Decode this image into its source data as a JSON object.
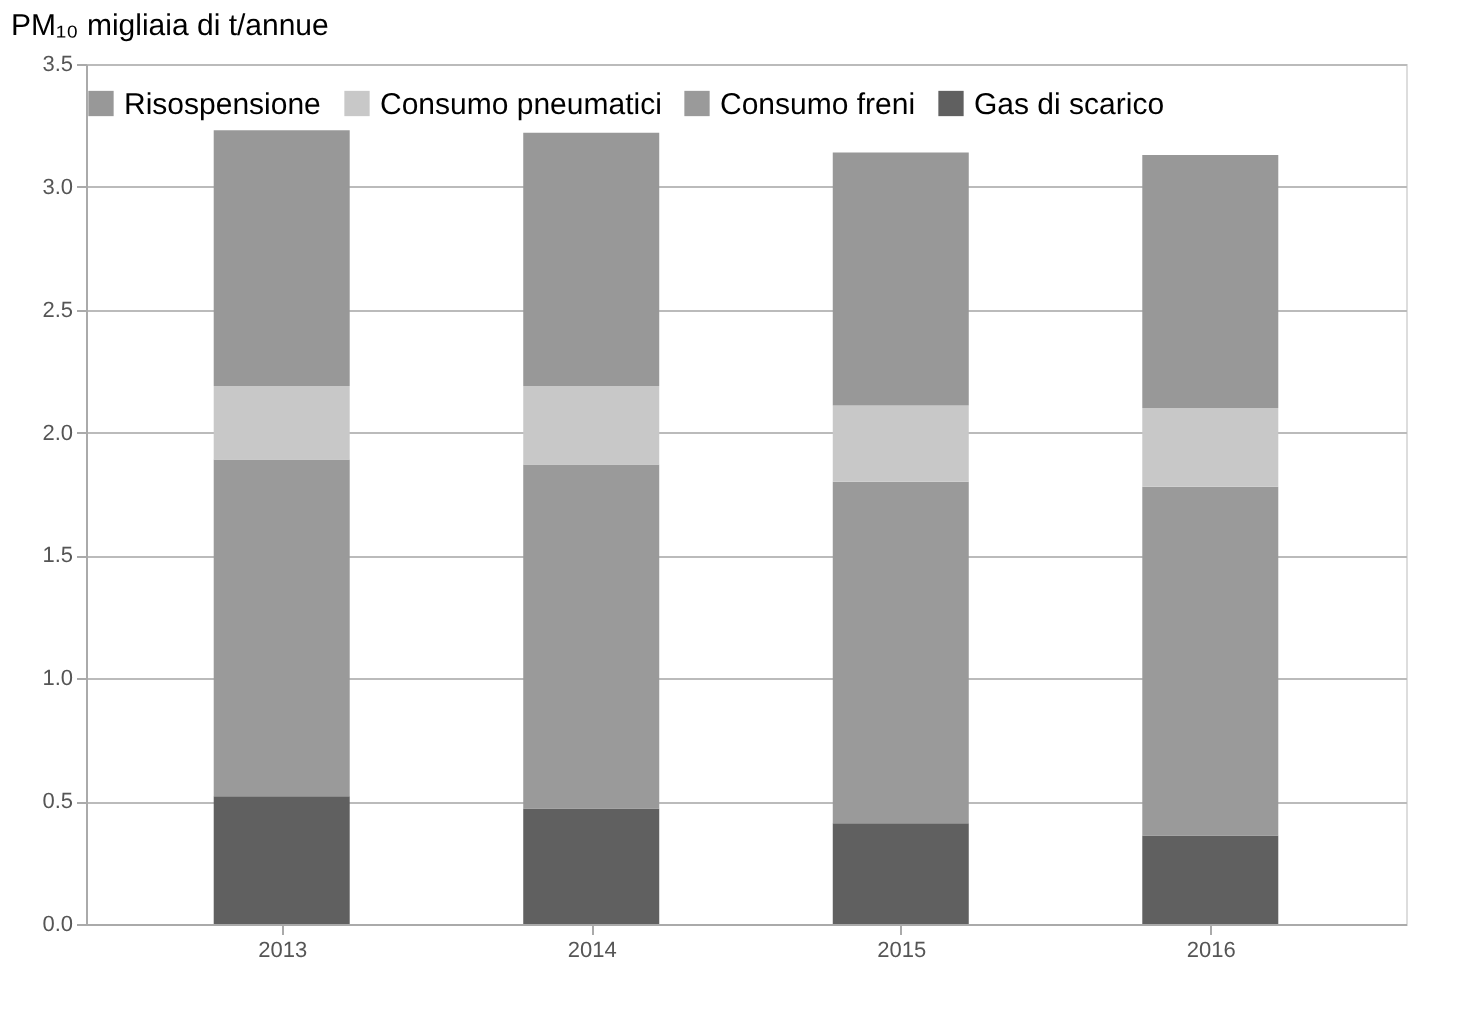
{
  "chart_data": {
    "type": "bar",
    "stacked": true,
    "ylabel": "PM₁₀ migliaia di t/annue",
    "categories": [
      "2013",
      "2014",
      "2015",
      "2016"
    ],
    "series": [
      {
        "name": "Gas di scarico",
        "color": "#606060",
        "values": [
          0.52,
          0.47,
          0.41,
          0.36
        ]
      },
      {
        "name": "Consumo freni",
        "color": "#9a9a9a",
        "values": [
          1.37,
          1.4,
          1.39,
          1.42
        ]
      },
      {
        "name": "Consumo pneumatici",
        "color": "#c8c8c8",
        "values": [
          0.3,
          0.32,
          0.31,
          0.32
        ]
      },
      {
        "name": "Risospensione",
        "color": "#989898",
        "values": [
          1.04,
          1.03,
          1.03,
          1.03
        ]
      }
    ],
    "ylim": [
      0,
      3.5
    ],
    "yticks": [
      {
        "value": 0,
        "label": "0.0"
      },
      0.5,
      {
        "value": 1,
        "label": "1.0"
      },
      1.5,
      {
        "value": 2,
        "label": "2.0"
      },
      2.5,
      {
        "value": 3,
        "label": "3.0"
      },
      3.5
    ],
    "grid": "y",
    "legend": "top"
  }
}
